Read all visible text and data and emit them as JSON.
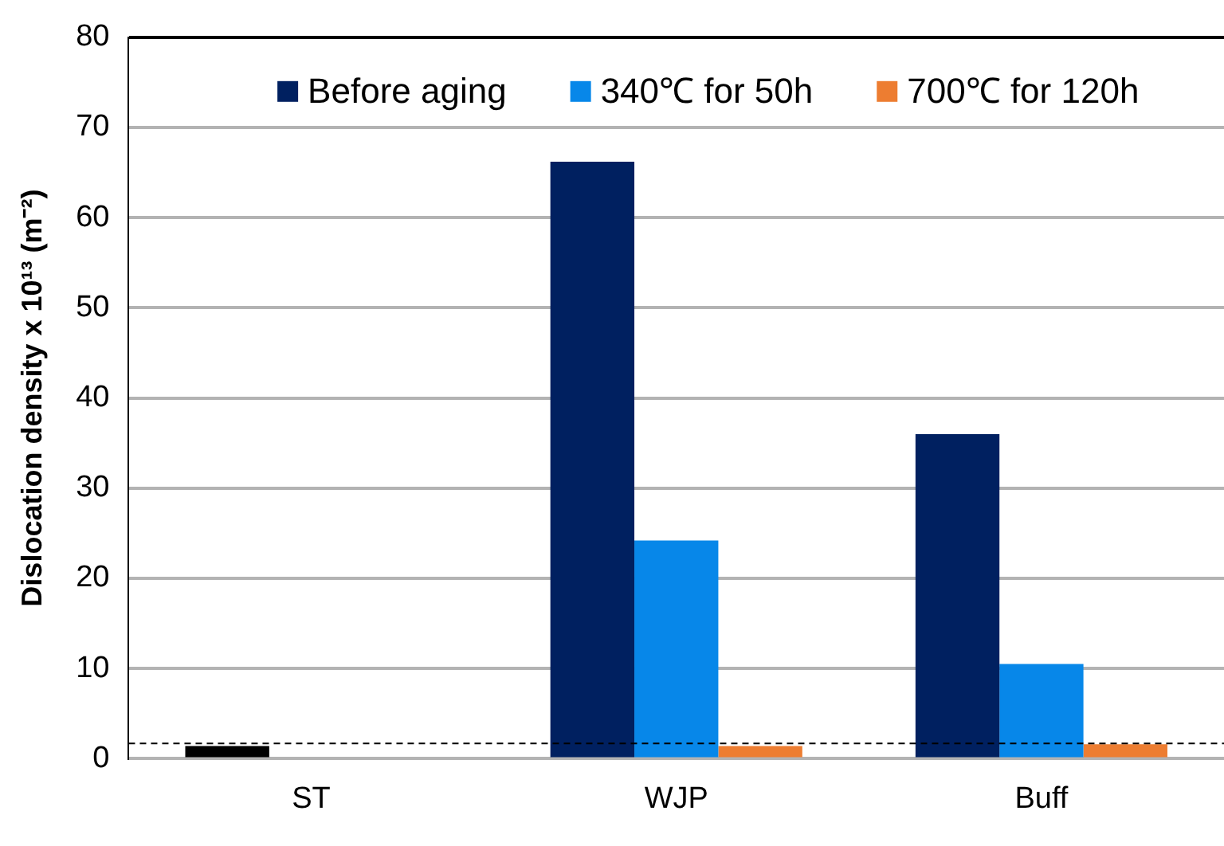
{
  "chart_data": {
    "type": "bar",
    "ylabel": "Dislocation density x 10¹³ (m⁻²)",
    "categories": [
      "ST",
      "WJP",
      "Buff"
    ],
    "series": [
      {
        "name": "Before aging",
        "color": "#002060",
        "colors": [
          "#000000",
          "#002060",
          "#002060"
        ],
        "values": [
          1.4,
          66.2,
          36.0
        ]
      },
      {
        "name": "340℃ for 50h",
        "color": "#0787e9",
        "values": [
          null,
          24.2,
          10.5
        ]
      },
      {
        "name": "700℃ for 120h",
        "color": "#ed7d31",
        "values": [
          null,
          1.4,
          1.6
        ]
      }
    ],
    "ylim": [
      0,
      80
    ],
    "yticks": [
      0,
      10,
      20,
      30,
      40,
      50,
      60,
      70,
      80
    ],
    "grid": "y",
    "legend": "top",
    "ref_lines": [
      {
        "axis": "y",
        "value": 1.7,
        "color": "#000000",
        "line_style": "dashed"
      }
    ]
  }
}
